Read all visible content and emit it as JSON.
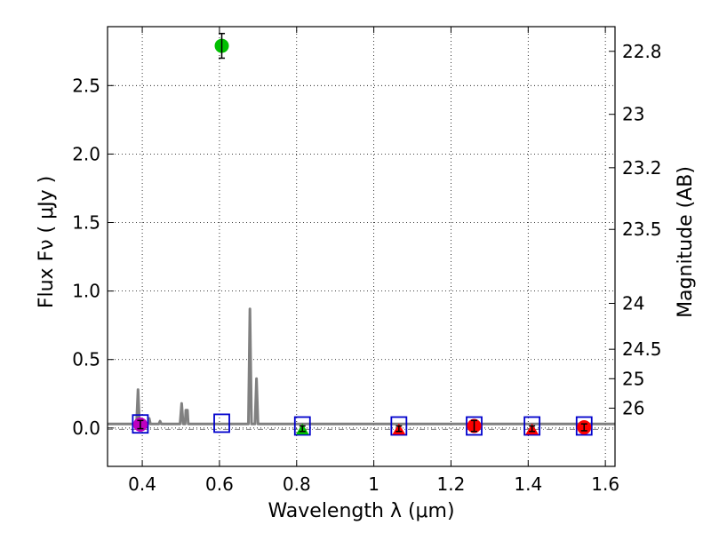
{
  "chart_data": {
    "type": "scatter",
    "xlabel": "Wavelength  λ (μm)",
    "ylabel": "Flux  Fν  ( μJy )",
    "ylabel_right": "Magnitude (AB)",
    "xlim": [
      0.31,
      1.625
    ],
    "ylim": [
      -0.28,
      2.93
    ],
    "grid": true,
    "x_ticks": [
      {
        "v": 0.4,
        "label": "0.4"
      },
      {
        "v": 0.6,
        "label": "0.6"
      },
      {
        "v": 0.8,
        "label": "0.8"
      },
      {
        "v": 1.0,
        "label": "1"
      },
      {
        "v": 1.2,
        "label": "1.2"
      },
      {
        "v": 1.4,
        "label": "1.4"
      },
      {
        "v": 1.6,
        "label": "1.6"
      }
    ],
    "y_ticks": [
      {
        "v": 0.0,
        "label": "0.0"
      },
      {
        "v": 0.5,
        "label": "0.5"
      },
      {
        "v": 1.0,
        "label": "1.0"
      },
      {
        "v": 1.5,
        "label": "1.5"
      },
      {
        "v": 2.0,
        "label": "2.0"
      },
      {
        "v": 2.5,
        "label": "2.5"
      }
    ],
    "right_ticks": [
      {
        "flux": 2.75,
        "label": "22.8"
      },
      {
        "flux": 2.29,
        "label": "23"
      },
      {
        "flux": 1.9,
        "label": "23.2"
      },
      {
        "flux": 1.45,
        "label": "23.5"
      },
      {
        "flux": 0.91,
        "label": "24"
      },
      {
        "flux": 0.575,
        "label": "24.5"
      },
      {
        "flux": 0.36,
        "label": "25"
      },
      {
        "flux": 0.145,
        "label": "26"
      }
    ],
    "model_spectrum": {
      "color": "#808080",
      "points": [
        [
          0.31,
          0.03
        ],
        [
          0.385,
          0.03
        ],
        [
          0.389,
          0.28
        ],
        [
          0.393,
          0.03
        ],
        [
          0.415,
          0.03
        ],
        [
          0.418,
          0.07
        ],
        [
          0.421,
          0.03
        ],
        [
          0.443,
          0.03
        ],
        [
          0.446,
          0.05
        ],
        [
          0.449,
          0.03
        ],
        [
          0.498,
          0.03
        ],
        [
          0.502,
          0.18
        ],
        [
          0.506,
          0.03
        ],
        [
          0.511,
          0.03
        ],
        [
          0.513,
          0.13
        ],
        [
          0.517,
          0.13
        ],
        [
          0.519,
          0.03
        ],
        [
          0.675,
          0.03
        ],
        [
          0.679,
          0.87
        ],
        [
          0.683,
          0.03
        ],
        [
          0.692,
          0.03
        ],
        [
          0.696,
          0.36
        ],
        [
          0.7,
          0.03
        ],
        [
          1.625,
          0.03
        ]
      ]
    },
    "zero_line": {
      "y": -0.01,
      "color": "#808080",
      "style": "dash-dot"
    },
    "series": [
      {
        "name": "observed",
        "shape": "circle",
        "x": 0.395,
        "y": 0.025,
        "err": 0.03,
        "color": "#bf00bf"
      },
      {
        "name": "observed",
        "shape": "circle",
        "x": 0.606,
        "y": 2.79,
        "err": 0.09,
        "color": "#00bf00"
      },
      {
        "name": "upper-limit",
        "shape": "triangle",
        "x": 0.815,
        "y": -0.005,
        "err": 0.02,
        "color": "#00bf00"
      },
      {
        "name": "upper-limit",
        "shape": "triangle",
        "x": 1.065,
        "y": -0.005,
        "err": 0.02,
        "color": "#ff0000"
      },
      {
        "name": "observed",
        "shape": "circle",
        "x": 1.26,
        "y": 0.015,
        "err": 0.04,
        "color": "#ff0000"
      },
      {
        "name": "upper-limit",
        "shape": "triangle",
        "x": 1.41,
        "y": -0.005,
        "err": 0.02,
        "color": "#ff0000"
      },
      {
        "name": "observed",
        "shape": "circle",
        "x": 1.545,
        "y": 0.005,
        "err": 0.025,
        "color": "#ff0000"
      }
    ],
    "model_flux": [
      {
        "x": 0.395,
        "y": 0.03
      },
      {
        "x": 0.606,
        "y": 0.035
      },
      {
        "x": 0.815,
        "y": 0.015
      },
      {
        "x": 1.065,
        "y": 0.015
      },
      {
        "x": 1.26,
        "y": 0.015
      },
      {
        "x": 1.41,
        "y": 0.015
      },
      {
        "x": 1.545,
        "y": 0.015
      }
    ],
    "model_flux_color": "#0000cc"
  }
}
